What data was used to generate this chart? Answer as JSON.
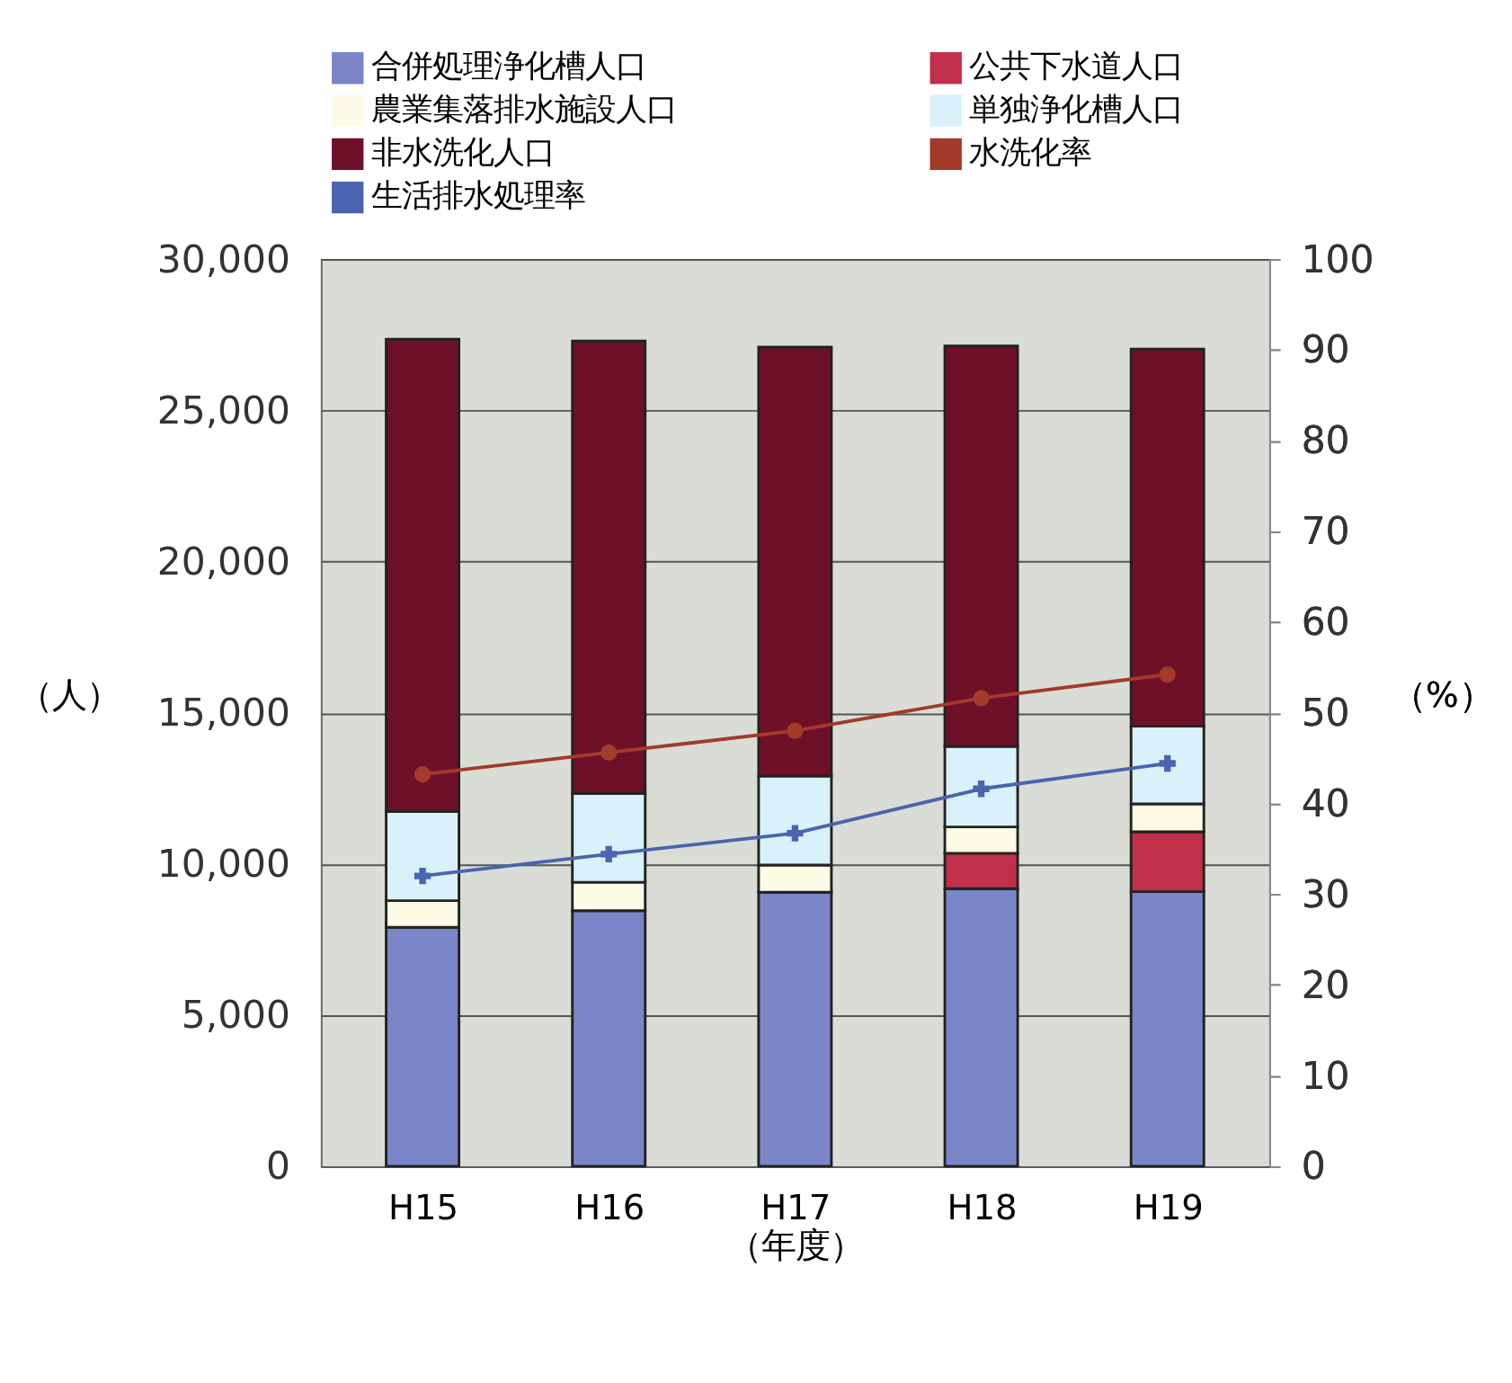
{
  "chart_data": {
    "type": "bar",
    "stacked": true,
    "categories": [
      "H15",
      "H16",
      "H17",
      "H18",
      "H19"
    ],
    "xlabel": "（年度）",
    "ylabel": "（人）",
    "y2label": "（%）",
    "ylim": [
      0,
      30000
    ],
    "yticks": [
      {
        "value": 0,
        "label": "0"
      },
      {
        "value": 5000,
        "label": "5,000"
      },
      {
        "value": 10000,
        "label": "10,000"
      },
      {
        "value": 15000,
        "label": "15,000"
      },
      {
        "value": 20000,
        "label": "20,000"
      },
      {
        "value": 25000,
        "label": "25,000"
      },
      {
        "value": 30000,
        "label": "30,000"
      }
    ],
    "y2lim": [
      0,
      100
    ],
    "y2ticks": [
      0,
      10,
      20,
      30,
      40,
      50,
      60,
      70,
      80,
      90,
      100
    ],
    "grid": "y",
    "legend": "top",
    "series": [
      {
        "name": "合併処理浄化槽人口",
        "color": "#7b86c8",
        "values": [
          7900,
          8450,
          9060,
          9180,
          9080
        ]
      },
      {
        "name": "公共下水道人口",
        "color": "#c0304a",
        "values": [
          null,
          null,
          null,
          1170,
          1980
        ]
      },
      {
        "name": "農業集落排水施設人口",
        "color": "#fdfbe6",
        "values": [
          880,
          940,
          900,
          870,
          920
        ]
      },
      {
        "name": "単独浄化槽人口",
        "color": "#d8f1fb",
        "values": [
          2950,
          2940,
          2940,
          2660,
          2570
        ]
      },
      {
        "name": "非水洗化人口",
        "color": "#6e1028",
        "values": [
          15620,
          14960,
          14190,
          13250,
          12470
        ]
      },
      {
        "name": "水洗化率",
        "type": "line",
        "axis": "y2",
        "marker": "circle",
        "color": "#a33a2a",
        "values": [
          43.2,
          45.6,
          48.0,
          51.6,
          54.2
        ]
      },
      {
        "name": "生活排水処理率",
        "type": "line",
        "axis": "y2",
        "marker": "cross",
        "color": "#4a64b0",
        "values": [
          32.0,
          34.4,
          36.7,
          41.6,
          44.4
        ]
      }
    ]
  }
}
